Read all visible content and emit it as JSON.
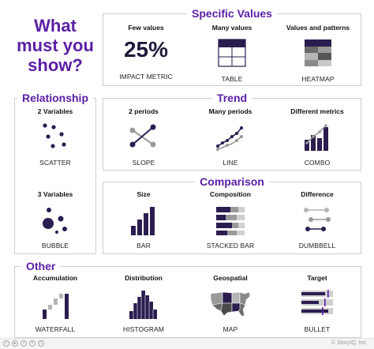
{
  "question": [
    "What",
    "must you",
    "show?"
  ],
  "colors": {
    "accent": "#5a1fa5",
    "dark": "#2b1d4f",
    "grey": "#9a9a9a",
    "light": "#c8c8c8"
  },
  "specific": {
    "title": "Specific Values",
    "items": [
      {
        "head": "Few values",
        "value": "25%",
        "label": "IMPACT METRIC"
      },
      {
        "head": "Many values",
        "label": "TABLE",
        "icon": "table-icon"
      },
      {
        "head": "Values and patterns",
        "label": "HEATMAP",
        "icon": "heatmap-icon"
      }
    ]
  },
  "relationship": {
    "title": "Relationship",
    "items": [
      {
        "head": "2 Variables",
        "label": "SCATTER",
        "icon": "scatter-icon"
      },
      {
        "head": "3 Variables",
        "label": "BUBBLE",
        "icon": "bubble-icon"
      }
    ]
  },
  "trend": {
    "title": "Trend",
    "items": [
      {
        "head": "2 periods",
        "label": "SLOPE",
        "icon": "slope-icon"
      },
      {
        "head": "Many periods",
        "label": "LINE",
        "icon": "line-icon"
      },
      {
        "head": "Different metrics",
        "label": "COMBO",
        "icon": "combo-icon"
      }
    ]
  },
  "comparison": {
    "title": "Comparison",
    "items": [
      {
        "head": "Size",
        "label": "BAR",
        "icon": "bar-icon"
      },
      {
        "head": "Composition",
        "label": "STACKED BAR",
        "icon": "stacked-bar-icon"
      },
      {
        "head": "Difference",
        "label": "DUMBBELL",
        "icon": "dumbbell-icon"
      }
    ]
  },
  "other": {
    "title": "Other",
    "items": [
      {
        "head": "Accumulation",
        "label": "WATERFALL",
        "icon": "waterfall-icon"
      },
      {
        "head": "Distribution",
        "label": "HISTOGRAM",
        "icon": "histogram-icon"
      },
      {
        "head": "Geospatial",
        "label": "MAP",
        "icon": "map-icon"
      },
      {
        "head": "Target",
        "label": "BULLET",
        "icon": "bullet-icon"
      }
    ]
  },
  "footer": {
    "copyright": "© StoryIQ, Inc"
  }
}
